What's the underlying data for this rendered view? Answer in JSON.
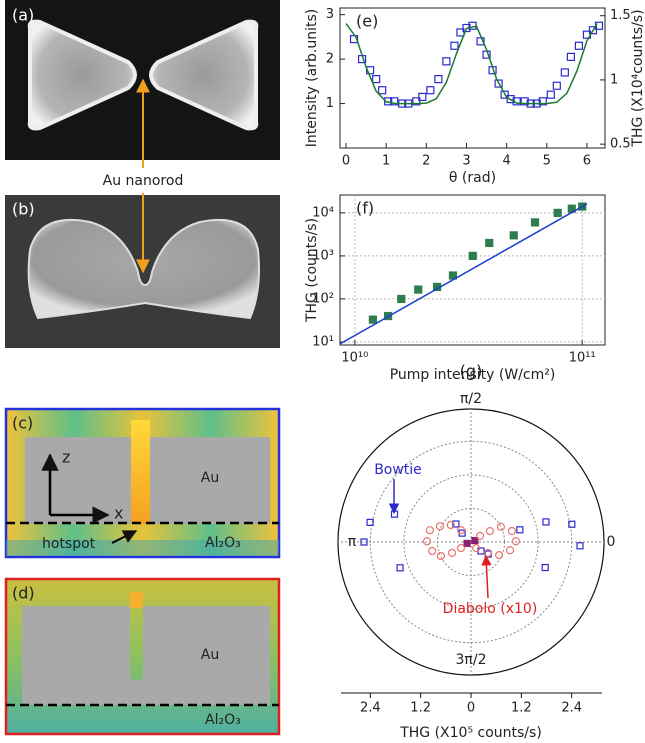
{
  "panels": [
    {
      "label": "(a)"
    },
    {
      "label": "(b)"
    },
    {
      "label": "(c)",
      "texts": [
        "z",
        "x",
        "Au",
        "hotspot",
        "Al₂O₃"
      ]
    },
    {
      "label": "(d)",
      "texts": [
        "Au",
        "Al₂O₃"
      ]
    }
  ],
  "annotation": "Au nanorod",
  "chart_data": [
    {
      "type": "line",
      "label": "(e)",
      "xlabel": "θ (rad)",
      "ylabel": "Intensity (arb.units)",
      "y2label": "THG (X10⁴counts/s)",
      "xlim": [
        -0.15,
        6.45
      ],
      "ylim": [
        0,
        3.15
      ],
      "y2lim": [
        0.47,
        1.56
      ],
      "xticks": [
        0,
        1,
        2,
        3,
        4,
        5,
        6
      ],
      "yticks": [
        1,
        2,
        3
      ],
      "y2ticks": [
        0.5,
        1,
        1.5
      ],
      "series": [
        {
          "marker": "square",
          "color": "#2a2ad0",
          "x": [
            0.2,
            0.4,
            0.6,
            0.75,
            0.9,
            1.05,
            1.2,
            1.4,
            1.55,
            1.75,
            1.9,
            2.1,
            2.3,
            2.5,
            2.7,
            2.85,
            3.0,
            3.15,
            3.35,
            3.5,
            3.65,
            3.8,
            3.95,
            4.1,
            4.25,
            4.45,
            4.6,
            4.75,
            4.9,
            5.1,
            5.25,
            5.45,
            5.6,
            5.8,
            6.0,
            6.15,
            6.3
          ],
          "values": [
            2.45,
            2.0,
            1.75,
            1.55,
            1.3,
            1.05,
            1.05,
            1.0,
            1.0,
            1.05,
            1.15,
            1.3,
            1.55,
            1.95,
            2.3,
            2.6,
            2.7,
            2.75,
            2.4,
            2.1,
            1.75,
            1.45,
            1.2,
            1.1,
            1.05,
            1.05,
            1.0,
            1.0,
            1.05,
            1.2,
            1.4,
            1.7,
            2.05,
            2.3,
            2.55,
            2.65,
            2.75
          ]
        },
        {
          "marker": "none",
          "color": "#1a7a30",
          "x": [
            0,
            0.25,
            0.5,
            0.75,
            1,
            1.25,
            1.5,
            1.75,
            2,
            2.25,
            2.5,
            2.75,
            3,
            3.25,
            3.5,
            3.75,
            4,
            4.25,
            4.5,
            4.75,
            5,
            5.25,
            5.5,
            5.75,
            6,
            6.25
          ],
          "values": [
            2.8,
            2.49,
            1.82,
            1.28,
            1.04,
            1.0,
            1.0,
            1.0,
            1.01,
            1.11,
            1.48,
            2.12,
            2.69,
            2.74,
            2.21,
            1.55,
            1.14,
            1.01,
            1.0,
            1.0,
            1.0,
            1.03,
            1.23,
            1.73,
            2.41,
            2.8
          ]
        }
      ]
    },
    {
      "type": "scatter",
      "label": "(f)",
      "xlabel": "Pump intensity (W/cm²)",
      "ylabel": "THG (counts/s)",
      "log": true,
      "grid": true,
      "xlim": [
        8600000000.0,
        126000000000.0
      ],
      "ylim": [
        8.5,
        26000
      ],
      "xticks": [
        {
          "value": 10000000000.0,
          "label": "10¹⁰"
        },
        {
          "value": 100000000000.0,
          "label": "10¹¹"
        }
      ],
      "yticks": [
        {
          "value": 10,
          "label": "10¹"
        },
        {
          "value": 100,
          "label": "10²"
        },
        {
          "value": 1000,
          "label": "10³"
        },
        {
          "value": 10000,
          "label": "10⁴"
        }
      ],
      "series": [
        {
          "marker": "square",
          "color": "#2e7d4f",
          "x": [
            12000000000.0,
            14000000000.0,
            16000000000.0,
            19000000000.0,
            23000000000.0,
            27000000000.0,
            33000000000.0,
            39000000000.0,
            50000000000.0,
            62000000000.0,
            78000000000.0,
            90000000000.0,
            100000000000.0
          ],
          "values": [
            33,
            40,
            100,
            165,
            190,
            350,
            1000,
            2000,
            3000,
            6000,
            10000,
            12500,
            14000
          ]
        },
        {
          "marker": "none",
          "color": "#1a3fd0",
          "x": [
            8600000000.0,
            105000000000.0
          ],
          "values": [
            9.0,
            16200
          ]
        }
      ]
    },
    {
      "type": "polar",
      "label": "(g)",
      "xlabel": "THG (X10⁵ counts/s)",
      "rlim": [
        0,
        3.17
      ],
      "rticks": [
        0.8,
        1.6,
        2.4
      ],
      "angle_ticks": [
        {
          "value": 90,
          "label": "π/2"
        },
        {
          "value": 180,
          "label": "π"
        },
        {
          "value": 0,
          "label": "0"
        },
        {
          "value": 270,
          "label": "3π/2"
        }
      ],
      "xticks": [
        {
          "value": -2.4,
          "label": "2.4"
        },
        {
          "value": -1.2,
          "label": "1.2"
        },
        0,
        1.2,
        2.4
      ],
      "series": [
        {
          "name": "Bowtie",
          "marker": "square",
          "color": "#2a2ad0",
          "theta": [
            160,
            169,
            180,
            200,
            130,
            135,
            318,
            325,
            14,
            15,
            10,
            358,
            341,
            200,
            20
          ],
          "values": [
            1.94,
            2.45,
            2.55,
            1.8,
            0.56,
            0.3,
            0.32,
            0.5,
            1.2,
            1.85,
            2.44,
            2.6,
            1.87,
            0.1,
            0.1
          ]
        },
        {
          "name": "Diabolo (x10)",
          "marker": "circle",
          "color": "#e8736e",
          "theta": [
            164,
            179,
            193,
            205,
            210,
            211,
            153,
            140,
            130,
            34,
            30,
            27,
            15,
            1,
            348,
            335,
            327,
            310
          ],
          "values": [
            1.02,
            1.05,
            0.95,
            0.79,
            0.52,
            0.28,
            0.83,
            0.63,
            0.37,
            0.26,
            0.52,
            0.8,
            1.01,
            1.07,
            0.95,
            0.74,
            0.48,
            0.19
          ]
        }
      ]
    }
  ]
}
